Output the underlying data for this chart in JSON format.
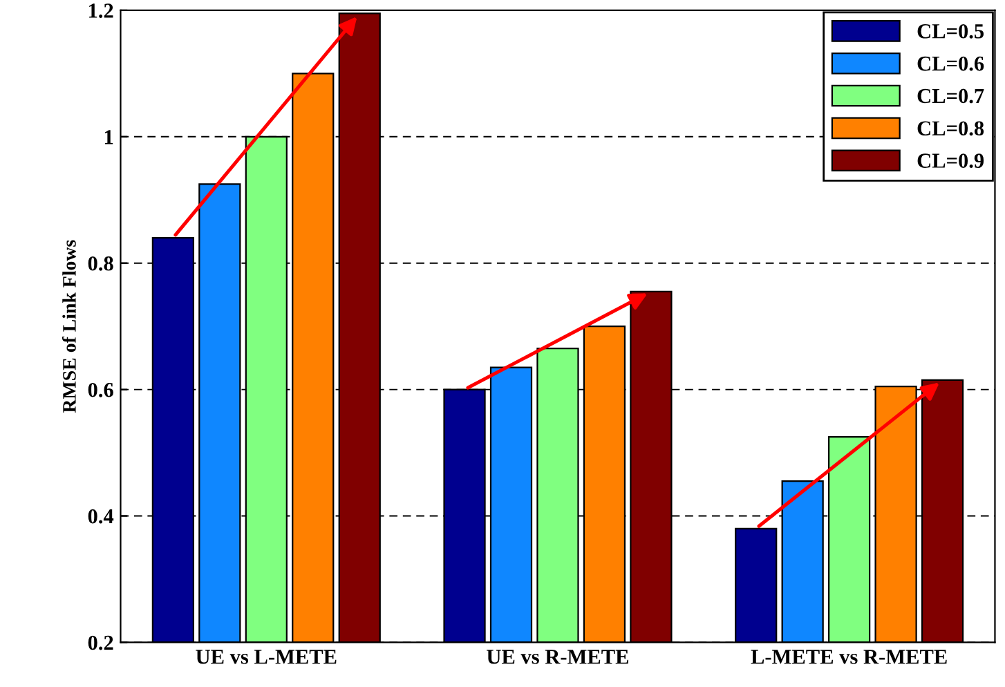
{
  "chart_data": {
    "type": "bar",
    "ylabel": "RMSE of Link Flows",
    "categories": [
      "UE vs L-METE",
      "UE vs R-METE",
      "L-METE vs R-METE"
    ],
    "series": [
      {
        "name": "CL=0.5",
        "color": "#00008f",
        "values": [
          0.84,
          0.6,
          0.38
        ]
      },
      {
        "name": "CL=0.6",
        "color": "#0f87ff",
        "values": [
          0.925,
          0.635,
          0.455
        ]
      },
      {
        "name": "CL=0.7",
        "color": "#80ff80",
        "values": [
          1.0,
          0.665,
          0.525
        ]
      },
      {
        "name": "CL=0.8",
        "color": "#ff8000",
        "values": [
          1.1,
          0.7,
          0.605
        ]
      },
      {
        "name": "CL=0.9",
        "color": "#800000",
        "values": [
          1.195,
          0.755,
          0.615
        ]
      }
    ],
    "ylim": [
      0.2,
      1.2
    ],
    "yticks": [
      0.2,
      0.4,
      0.6,
      0.8,
      1,
      1.2
    ],
    "grid": "y",
    "legend": "top right"
  }
}
